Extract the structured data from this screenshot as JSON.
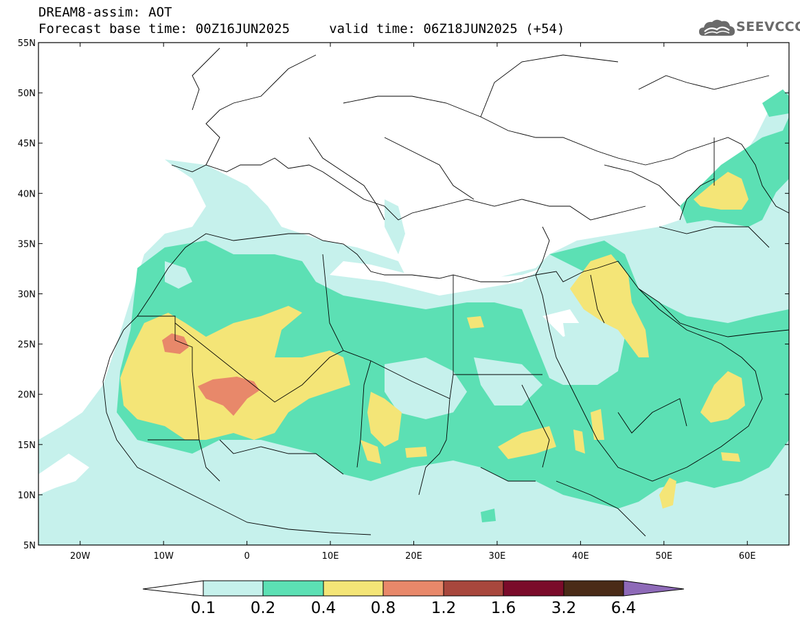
{
  "header": {
    "model_title": "DREAM8-assim: AOT",
    "time_line": "Forecast base time: 00Z16JUN2025     valid time: 06Z18JUN2025 (+54)"
  },
  "logo": {
    "text": "SEEVCCC",
    "icon": "cloud-icon"
  },
  "map": {
    "lon_range": [
      -25,
      65
    ],
    "lat_range": [
      5,
      55
    ],
    "lon_ticks": [
      {
        "value": -20,
        "label": "20W"
      },
      {
        "value": -10,
        "label": "10W"
      },
      {
        "value": 0,
        "label": "0"
      },
      {
        "value": 10,
        "label": "10E"
      },
      {
        "value": 20,
        "label": "20E"
      },
      {
        "value": 30,
        "label": "30E"
      },
      {
        "value": 40,
        "label": "40E"
      },
      {
        "value": 50,
        "label": "50E"
      },
      {
        "value": 60,
        "label": "60E"
      }
    ],
    "lat_ticks": [
      {
        "value": 55,
        "label": "55N"
      },
      {
        "value": 50,
        "label": "50N"
      },
      {
        "value": 45,
        "label": "45N"
      },
      {
        "value": 40,
        "label": "40N"
      },
      {
        "value": 35,
        "label": "35N"
      },
      {
        "value": 30,
        "label": "30N"
      },
      {
        "value": 25,
        "label": "25N"
      },
      {
        "value": 20,
        "label": "20N"
      },
      {
        "value": 15,
        "label": "15N"
      },
      {
        "value": 10,
        "label": "10N"
      },
      {
        "value": 5,
        "label": "5N"
      }
    ]
  },
  "colors": {
    "c0_1": "#c6f1ec",
    "c0_2": "#5ce0b4",
    "c0_4": "#f4e577",
    "c0_8": "#e8886a",
    "c1_2": "#a8473d",
    "c1_6": "#7a0b2a",
    "c3_2": "#4a2b17",
    "c6_4": "#8e6ab8",
    "border": "#000000"
  },
  "colorbar": {
    "labels": [
      "0.1",
      "0.2",
      "0.4",
      "0.8",
      "1.2",
      "1.6",
      "3.2",
      "6.4"
    ]
  }
}
